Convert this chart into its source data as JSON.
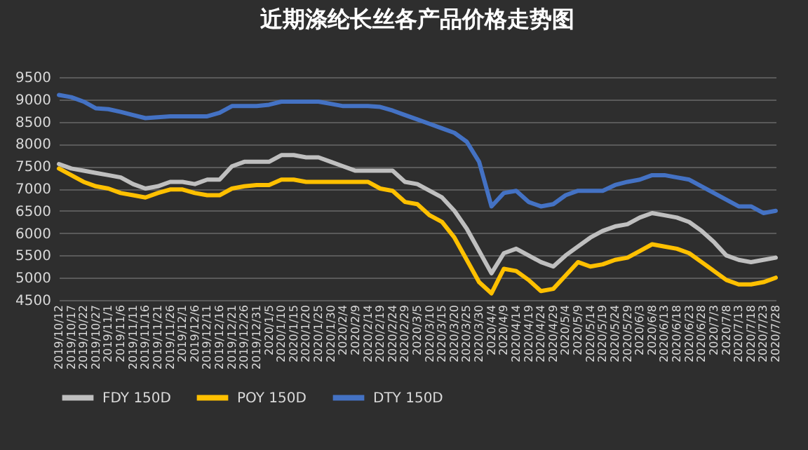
{
  "chart_data": {
    "type": "line",
    "title": "近期涤纶长丝各产品价格走势图",
    "categories": [
      "2019/10/12",
      "2019/10/17",
      "2019/10/22",
      "2019/10/27",
      "2019/11/1",
      "2019/11/6",
      "2019/11/11",
      "2019/11/16",
      "2019/11/21",
      "2019/11/26",
      "2019/12/1",
      "2019/12/6",
      "2019/12/11",
      "2019/12/16",
      "2019/12/21",
      "2019/12/26",
      "2019/12/31",
      "2020/1/5",
      "2020/1/10",
      "2020/1/15",
      "2020/1/20",
      "2020/1/25",
      "2020/1/30",
      "2020/2/4",
      "2020/2/9",
      "2020/2/14",
      "2020/2/19",
      "2020/2/24",
      "2020/2/29",
      "2020/3/5",
      "2020/3/10",
      "2020/3/15",
      "2020/3/20",
      "2020/3/25",
      "2020/3/30",
      "2020/4/4",
      "2020/4/9",
      "2020/4/14",
      "2020/4/19",
      "2020/4/24",
      "2020/4/29",
      "2020/5/4",
      "2020/5/9",
      "2020/5/14",
      "2020/5/19",
      "2020/5/24",
      "2020/5/29",
      "2020/6/3",
      "2020/6/8",
      "2020/6/13",
      "2020/6/18",
      "2020/6/23",
      "2020/6/28",
      "2020/7/3",
      "2020/7/8",
      "2020/7/13",
      "2020/7/18",
      "2020/7/23",
      "2020/7/28"
    ],
    "series": [
      {
        "name": "FDY 150D",
        "color": "#bfbfbf",
        "values": [
          7550,
          7450,
          7400,
          7350,
          7300,
          7250,
          7100,
          7000,
          7050,
          7150,
          7150,
          7100,
          7200,
          7200,
          7500,
          7600,
          7600,
          7600,
          7750,
          7750,
          7700,
          7700,
          7600,
          7500,
          7400,
          7400,
          7400,
          7400,
          7150,
          7100,
          6950,
          6800,
          6500,
          6100,
          5600,
          5100,
          5550,
          5650,
          5500,
          5350,
          5250,
          5500,
          5700,
          5900,
          6050,
          6150,
          6200,
          6350,
          6450,
          6400,
          6350,
          6250,
          6050,
          5800,
          5500,
          5400,
          5350,
          5400,
          5450
        ]
      },
      {
        "name": "POY 150D",
        "color": "#ffc000",
        "values": [
          7450,
          7300,
          7150,
          7050,
          7000,
          6900,
          6850,
          6800,
          6900,
          6980,
          6980,
          6900,
          6850,
          6850,
          7000,
          7050,
          7080,
          7080,
          7200,
          7200,
          7150,
          7150,
          7150,
          7150,
          7150,
          7150,
          7000,
          6950,
          6700,
          6650,
          6400,
          6250,
          5900,
          5400,
          4900,
          4650,
          5200,
          5150,
          4950,
          4700,
          4750,
          5050,
          5350,
          5250,
          5300,
          5400,
          5450,
          5600,
          5750,
          5700,
          5650,
          5550,
          5350,
          5150,
          4950,
          4850,
          4850,
          4900,
          5000
        ]
      },
      {
        "name": "DTY 150D",
        "color": "#4472c4",
        "values": [
          9100,
          9050,
          8950,
          8800,
          8780,
          8720,
          8650,
          8580,
          8600,
          8620,
          8620,
          8620,
          8620,
          8700,
          8850,
          8850,
          8850,
          8880,
          8950,
          8950,
          8950,
          8950,
          8900,
          8850,
          8850,
          8850,
          8830,
          8750,
          8650,
          8550,
          8450,
          8350,
          8250,
          8050,
          7600,
          6600,
          6900,
          6950,
          6700,
          6600,
          6650,
          6850,
          6950,
          6950,
          6950,
          7080,
          7150,
          7200,
          7300,
          7300,
          7250,
          7200,
          7050,
          6900,
          6750,
          6600,
          6600,
          6450,
          6500
        ]
      }
    ],
    "ylim": [
      4500,
      9500
    ],
    "yticks": [
      4500,
      5000,
      5500,
      6000,
      6500,
      7000,
      7500,
      8000,
      8500,
      9000,
      9500
    ],
    "grid": "y",
    "legend": "bottom",
    "marker": "none",
    "line_style": "solid"
  }
}
